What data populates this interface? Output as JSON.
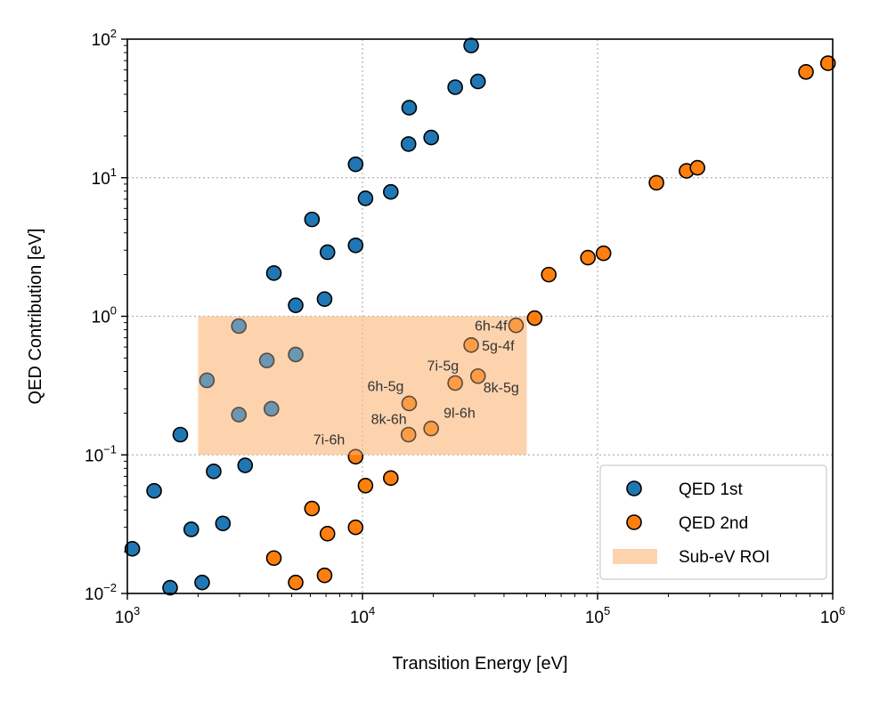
{
  "chart_data": {
    "type": "scatter",
    "title": "",
    "xlabel": "Transition Energy [eV]",
    "ylabel": "QED Contribution [eV]",
    "xscale": "log",
    "yscale": "log",
    "xlim": [
      1000,
      1000000
    ],
    "ylim": [
      0.01,
      100
    ],
    "grid": true,
    "x_ticks": [
      {
        "base": "10",
        "exp": "3"
      },
      {
        "base": "10",
        "exp": "4"
      },
      {
        "base": "10",
        "exp": "5"
      },
      {
        "base": "10",
        "exp": "6"
      }
    ],
    "y_ticks": [
      {
        "base": "10",
        "exp": "−2"
      },
      {
        "base": "10",
        "exp": "−1"
      },
      {
        "base": "10",
        "exp": "0"
      },
      {
        "base": "10",
        "exp": "1"
      },
      {
        "base": "10",
        "exp": "2"
      }
    ],
    "series": [
      {
        "name": "QED 1st",
        "color": "#1f77b4",
        "points": [
          [
            1050,
            0.021
          ],
          [
            1300,
            0.055
          ],
          [
            1520,
            0.011
          ],
          [
            1680,
            0.14
          ],
          [
            1870,
            0.029
          ],
          [
            2080,
            0.012
          ],
          [
            2180,
            0.345
          ],
          [
            2330,
            0.076
          ],
          [
            2550,
            0.032
          ],
          [
            2980,
            0.85
          ],
          [
            2980,
            0.195
          ],
          [
            3170,
            0.084
          ],
          [
            3920,
            0.48
          ],
          [
            4100,
            0.215
          ],
          [
            4200,
            2.05
          ],
          [
            5200,
            1.2
          ],
          [
            5200,
            0.53
          ],
          [
            6100,
            5.0
          ],
          [
            6900,
            1.33
          ],
          [
            7100,
            2.9
          ],
          [
            9350,
            3.25
          ],
          [
            9350,
            12.5
          ],
          [
            10300,
            7.1
          ],
          [
            13200,
            7.9
          ],
          [
            15700,
            17.5
          ],
          [
            15800,
            32.0
          ],
          [
            19600,
            19.5
          ],
          [
            24800,
            45.0
          ],
          [
            29000,
            90.0
          ],
          [
            31000,
            49.5
          ]
        ]
      },
      {
        "name": "QED 2nd",
        "color": "#ff7f0e",
        "points": [
          [
            4200,
            0.018
          ],
          [
            5200,
            0.012
          ],
          [
            6100,
            0.041
          ],
          [
            6900,
            0.0135
          ],
          [
            7100,
            0.027
          ],
          [
            9350,
            0.03
          ],
          [
            9350,
            0.097
          ],
          [
            10300,
            0.06
          ],
          [
            13200,
            0.068
          ],
          [
            15700,
            0.14
          ],
          [
            15800,
            0.235
          ],
          [
            19600,
            0.155
          ],
          [
            24800,
            0.33
          ],
          [
            29000,
            0.62
          ],
          [
            31000,
            0.37
          ],
          [
            45000,
            0.86
          ],
          [
            54000,
            0.97
          ],
          [
            62000,
            2.0
          ],
          [
            91000,
            2.65
          ],
          [
            106000,
            2.85
          ],
          [
            178000,
            9.2
          ],
          [
            239000,
            11.2
          ],
          [
            266000,
            11.8
          ],
          [
            770000,
            58.0
          ],
          [
            955000,
            67.0
          ]
        ]
      }
    ],
    "roi": {
      "name": "Sub-eV ROI",
      "color": "#fdd3ae",
      "x": [
        2000,
        50000
      ],
      "y": [
        0.1,
        1
      ]
    },
    "annotations": [
      {
        "text": "7i-6h",
        "x": 9350,
        "y": 0.097
      },
      {
        "text": "8k-6h",
        "x": 15700,
        "y": 0.14
      },
      {
        "text": "6h-5g",
        "x": 15800,
        "y": 0.235
      },
      {
        "text": "9l-6h",
        "x": 19600,
        "y": 0.155
      },
      {
        "text": "7i-5g",
        "x": 24800,
        "y": 0.33
      },
      {
        "text": "8k-5g",
        "x": 31000,
        "y": 0.37
      },
      {
        "text": "5g-4f",
        "x": 29000,
        "y": 0.62
      },
      {
        "text": "6h-4f",
        "x": 45000,
        "y": 0.86
      }
    ],
    "legend": {
      "position": "lower-right",
      "entries": [
        "QED 1st",
        "QED 2nd",
        "Sub-eV ROI"
      ]
    }
  }
}
